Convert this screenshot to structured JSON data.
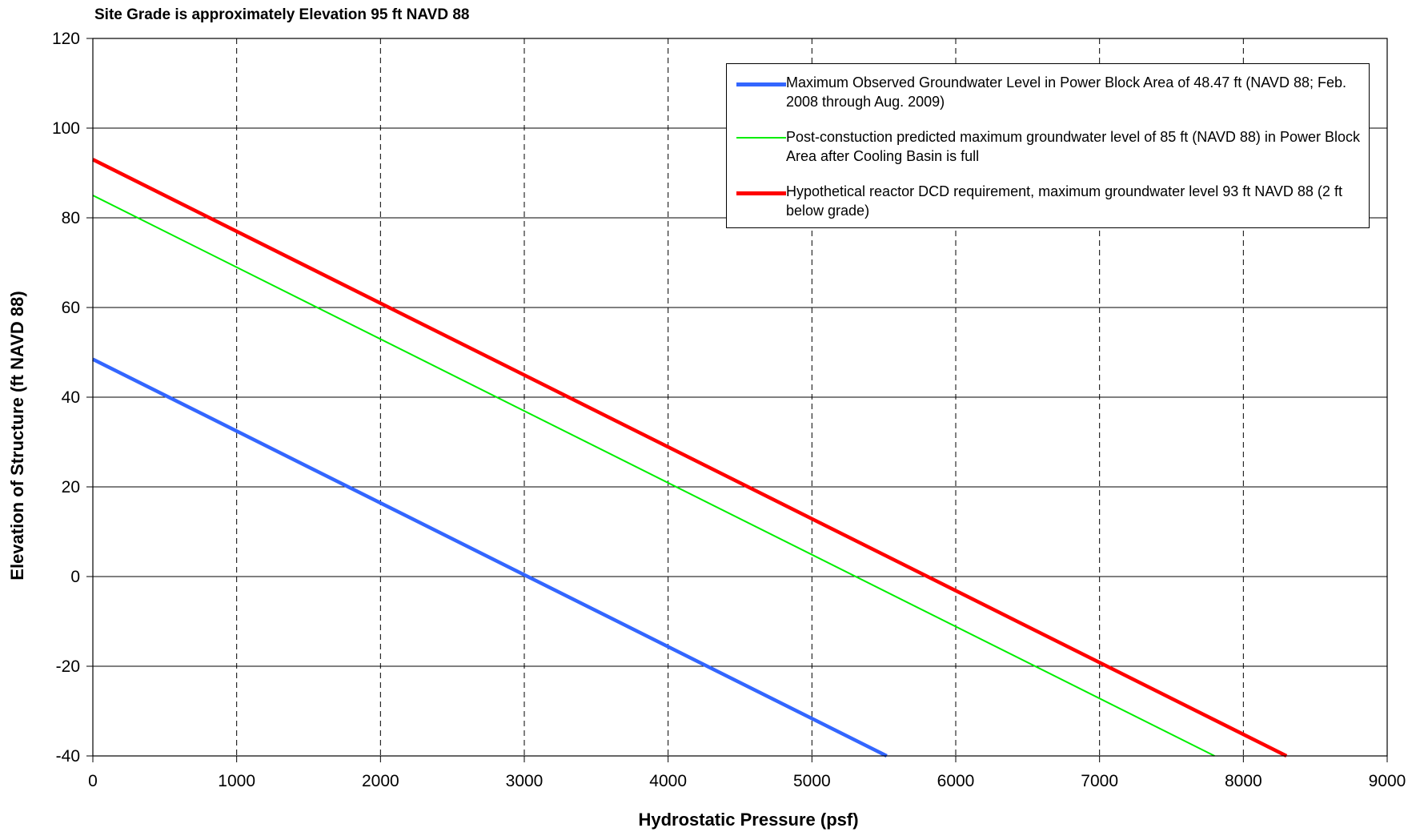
{
  "chart_data": {
    "type": "line",
    "note": "Site Grade is approximately Elevation 95 ft NAVD 88",
    "xlabel": "Hydrostatic Pressure (psf)",
    "ylabel": "Elevation of Structure (ft NAVD 88)",
    "xlim": [
      0,
      9000
    ],
    "ylim": [
      -40,
      120
    ],
    "xticks": [
      0,
      1000,
      2000,
      3000,
      4000,
      5000,
      6000,
      7000,
      8000,
      9000
    ],
    "yticks": [
      -40,
      -20,
      0,
      20,
      40,
      60,
      80,
      100,
      120
    ],
    "grid": {
      "x": "dashed",
      "y": "solid"
    },
    "legend_position": "top-right",
    "series": [
      {
        "name": "Maximum Observed Groundwater Level in Power Block Area of 48.47 ft (NAVD 88; Feb. 2008 through Aug. 2009)",
        "color": "#3366ff",
        "width": "thick",
        "points": [
          [
            0,
            48.47
          ],
          [
            5520,
            -40
          ]
        ]
      },
      {
        "name": "Post-constuction predicted maximum groundwater level of 85 ft (NAVD 88) in Power Block Area after Cooling Basin is full",
        "color": "#00ee00",
        "width": "thin",
        "points": [
          [
            0,
            85
          ],
          [
            7800,
            -40
          ]
        ]
      },
      {
        "name": "Hypothetical reactor DCD requirement, maximum groundwater level  93 ft NAVD 88 (2 ft below grade)",
        "color": "#ff0000",
        "width": "thick",
        "points": [
          [
            0,
            93
          ],
          [
            8300,
            -40
          ]
        ]
      }
    ]
  }
}
